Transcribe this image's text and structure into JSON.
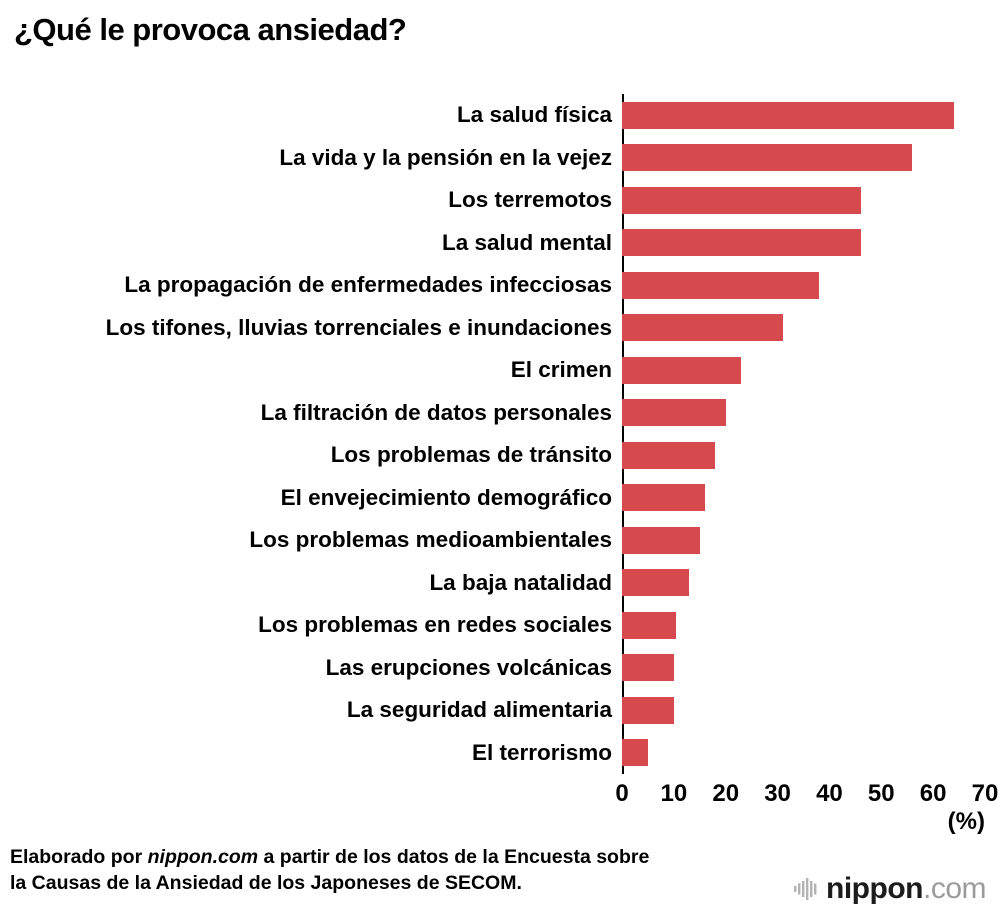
{
  "title": "¿Qué le provoca ansiedad?",
  "accent_color": "#d5494f",
  "chart_data": {
    "type": "bar",
    "orientation": "horizontal",
    "title": "¿Qué le provoca ansiedad?",
    "categories": [
      "La salud física",
      "La vida y la pensión en la vejez",
      "Los terremotos",
      "La salud mental",
      "La propagación de enfermedades infecciosas",
      "Los tifones, lluvias torrenciales e inundaciones",
      "El crimen",
      "La filtración de datos personales",
      "Los problemas de tránsito",
      "El envejecimiento demográfico",
      "Los problemas medioambientales",
      "La baja natalidad",
      "Los problemas en redes sociales",
      "Las erupciones volcánicas",
      "La seguridad alimentaria",
      "El terrorismo"
    ],
    "values": [
      64,
      56,
      46,
      46,
      38,
      31,
      23,
      20,
      18,
      16,
      15,
      13,
      10.5,
      10,
      10,
      5
    ],
    "xlim": [
      0,
      70
    ],
    "xticks": [
      0,
      10,
      20,
      30,
      40,
      50,
      60,
      70
    ],
    "x_unit_label": "(%)",
    "bar_color": "#d5494f",
    "grid": false,
    "legend": false
  },
  "footer": {
    "source_prefix": "Elaborado por ",
    "source_italic": "nippon.com",
    "source_suffix": " a partir de los datos de la Encuesta sobre la Causas de la Ansiedad de los Japoneses de SECOM."
  },
  "logo": {
    "name": "nippon",
    "tld": ".com",
    "icon": "soundwave-icon",
    "icon_color": "#b3b3b3"
  }
}
